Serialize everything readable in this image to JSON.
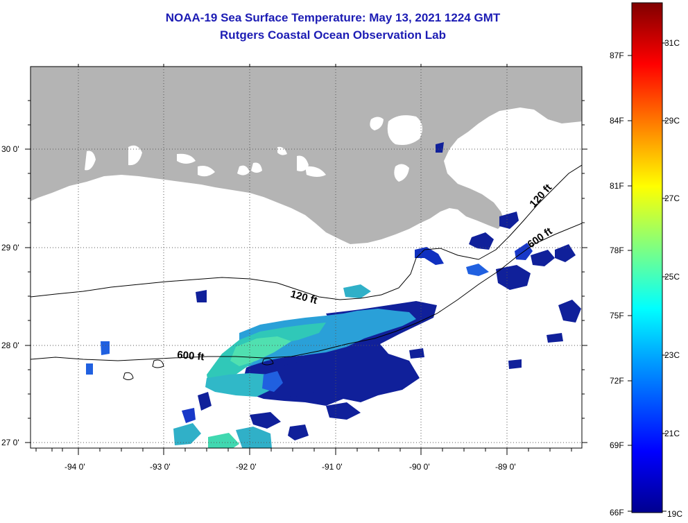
{
  "title": {
    "line1": "NOAA-19 Sea Surface Temperature:  May 13, 2021 1224 GMT",
    "line2": "Rutgers Coastal Ocean Observation Lab"
  },
  "map": {
    "lat_labels": [
      "30 0'",
      "29 0'",
      "28 0'",
      "27 0'"
    ],
    "lon_labels": [
      "-94 0'",
      "-93 0'",
      "-92 0'",
      "-91 0'",
      "-90 0'",
      "-89 0'"
    ],
    "contour_labels": [
      "120 ft",
      "600 ft",
      "120 ft",
      "600 ft"
    ],
    "colors": {
      "land": "#b4b4b4",
      "ocean": "#ffffff",
      "grid": "#555555"
    }
  },
  "colorbar": {
    "fahrenheit": [
      "87F",
      "84F",
      "81F",
      "78F",
      "75F",
      "72F",
      "69F",
      "66F"
    ],
    "celsius": [
      "31C",
      "29C",
      "27C",
      "25C",
      "23C",
      "21C",
      "19C"
    ],
    "colors": [
      "#800000",
      "#ff0000",
      "#ff8000",
      "#ffff00",
      "#80ff80",
      "#00ffff",
      "#0080ff",
      "#0000ff",
      "#000080"
    ]
  }
}
